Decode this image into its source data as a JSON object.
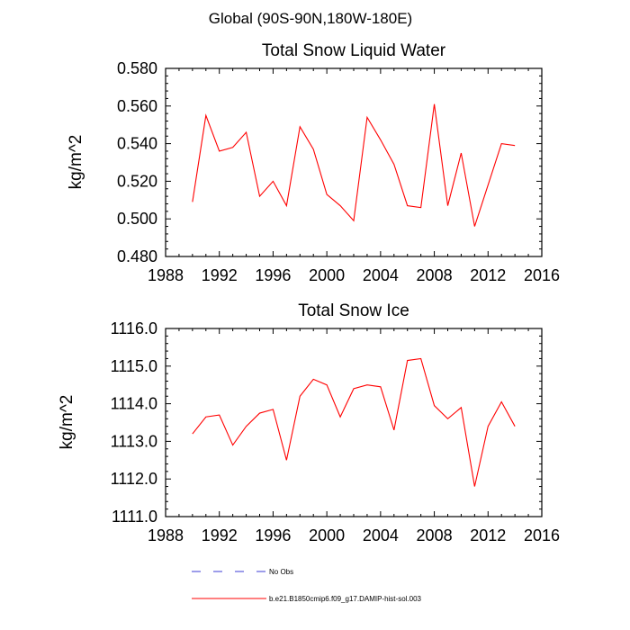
{
  "figure_title": "Global (90S-90N,180W-180E)",
  "colors": {
    "model_line": "#ff0000",
    "obs_line": "#3b3bd6",
    "axis": "#000000"
  },
  "chart_data": [
    {
      "type": "line",
      "title": "Total Snow Liquid Water",
      "xlabel": "",
      "ylabel": "kg/m^2",
      "xlim": [
        1988,
        2016
      ],
      "ylim": [
        0.48,
        0.58
      ],
      "xticks": [
        1988,
        1992,
        1996,
        2000,
        2004,
        2008,
        2012,
        2016
      ],
      "xtick_labels": [
        "1988",
        "1992",
        "1996",
        "2000",
        "2004",
        "2008",
        "2012",
        "2016"
      ],
      "yticks": [
        0.48,
        0.5,
        0.52,
        0.54,
        0.56,
        0.58
      ],
      "ytick_labels": [
        "0.480",
        "0.500",
        "0.520",
        "0.540",
        "0.560",
        "0.580"
      ],
      "grid": false,
      "series": [
        {
          "name": "b.e21.B1850cmip6.f09_g17.DAMIP-hist-sol.003",
          "color": "#ff0000",
          "x": [
            1990,
            1991,
            1992,
            1993,
            1994,
            1995,
            1996,
            1997,
            1998,
            1999,
            2000,
            2001,
            2002,
            2003,
            2004,
            2005,
            2006,
            2007,
            2008,
            2009,
            2010,
            2011,
            2012,
            2013,
            2014
          ],
          "y": [
            0.509,
            0.555,
            0.536,
            0.538,
            0.546,
            0.512,
            0.52,
            0.507,
            0.549,
            0.537,
            0.513,
            0.507,
            0.499,
            0.554,
            0.542,
            0.529,
            0.507,
            0.506,
            0.561,
            0.507,
            0.535,
            0.496,
            0.518,
            0.54,
            0.539
          ]
        }
      ]
    },
    {
      "type": "line",
      "title": "Total Snow Ice",
      "xlabel": "",
      "ylabel": "kg/m^2",
      "xlim": [
        1988,
        2016
      ],
      "ylim": [
        1111.0,
        1116.0
      ],
      "xticks": [
        1988,
        1992,
        1996,
        2000,
        2004,
        2008,
        2012,
        2016
      ],
      "xtick_labels": [
        "1988",
        "1992",
        "1996",
        "2000",
        "2004",
        "2008",
        "2012",
        "2016"
      ],
      "yticks": [
        1111,
        1112,
        1113,
        1114,
        1115,
        1116
      ],
      "ytick_labels": [
        "1111.0",
        "1112.0",
        "1113.0",
        "1114.0",
        "1115.0",
        "1116.0"
      ],
      "grid": false,
      "series": [
        {
          "name": "b.e21.B1850cmip6.f09_g17.DAMIP-hist-sol.003",
          "color": "#ff0000",
          "x": [
            1990,
            1991,
            1992,
            1993,
            1994,
            1995,
            1996,
            1997,
            1998,
            1999,
            2000,
            2001,
            2002,
            2003,
            2004,
            2005,
            2006,
            2007,
            2008,
            2009,
            2010,
            2011,
            2012,
            2013,
            2014
          ],
          "y": [
            1113.2,
            1113.65,
            1113.7,
            1112.9,
            1113.4,
            1113.75,
            1113.85,
            1112.5,
            1114.2,
            1114.65,
            1114.5,
            1113.65,
            1114.4,
            1114.5,
            1114.45,
            1113.3,
            1115.15,
            1115.2,
            1113.95,
            1113.6,
            1113.9,
            1111.8,
            1113.4,
            1114.05,
            1113.4
          ]
        }
      ]
    }
  ],
  "legend": {
    "placement": "bottom",
    "entries": [
      {
        "label": "No Obs",
        "style": "dashed",
        "color": "#3b3bd6"
      },
      {
        "label": "b.e21.B1850cmip6.f09_g17.DAMIP-hist-sol.003",
        "style": "solid",
        "color": "#ff0000"
      }
    ]
  }
}
